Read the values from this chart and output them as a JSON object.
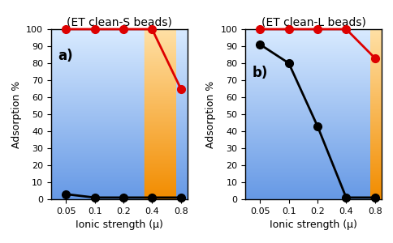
{
  "left_title": "(ET clean-S beads)",
  "right_title": "(ET clean-L beads)",
  "xlabel": "Ionic strength (μ)",
  "ylabel": "Adsorption %",
  "x_ticks": [
    0.05,
    0.1,
    0.2,
    0.4,
    0.8
  ],
  "x_tick_labels": [
    "0.05",
    "0.1",
    "0.2",
    "0.4",
    "0.8"
  ],
  "ylim": [
    0,
    100
  ],
  "left_black_y": [
    3,
    1,
    1,
    1,
    1
  ],
  "left_red_y": [
    100,
    100,
    100,
    100,
    65
  ],
  "right_black_y": [
    91,
    80,
    43,
    1,
    1
  ],
  "right_red_y": [
    100,
    100,
    100,
    100,
    83
  ],
  "label_a": "a)",
  "label_b": "b)",
  "red_color": "#dd0000",
  "black_color": "#000000",
  "blue_dark": [
    0.4,
    0.6,
    0.9
  ],
  "blue_light": [
    0.85,
    0.92,
    1.0
  ],
  "orange_dark": [
    0.95,
    0.55,
    0.0
  ],
  "orange_light": [
    1.0,
    0.88,
    0.65
  ],
  "title_fontsize": 10,
  "axis_label_fontsize": 9,
  "tick_fontsize": 8,
  "marker_size": 7,
  "linewidth": 2.0
}
